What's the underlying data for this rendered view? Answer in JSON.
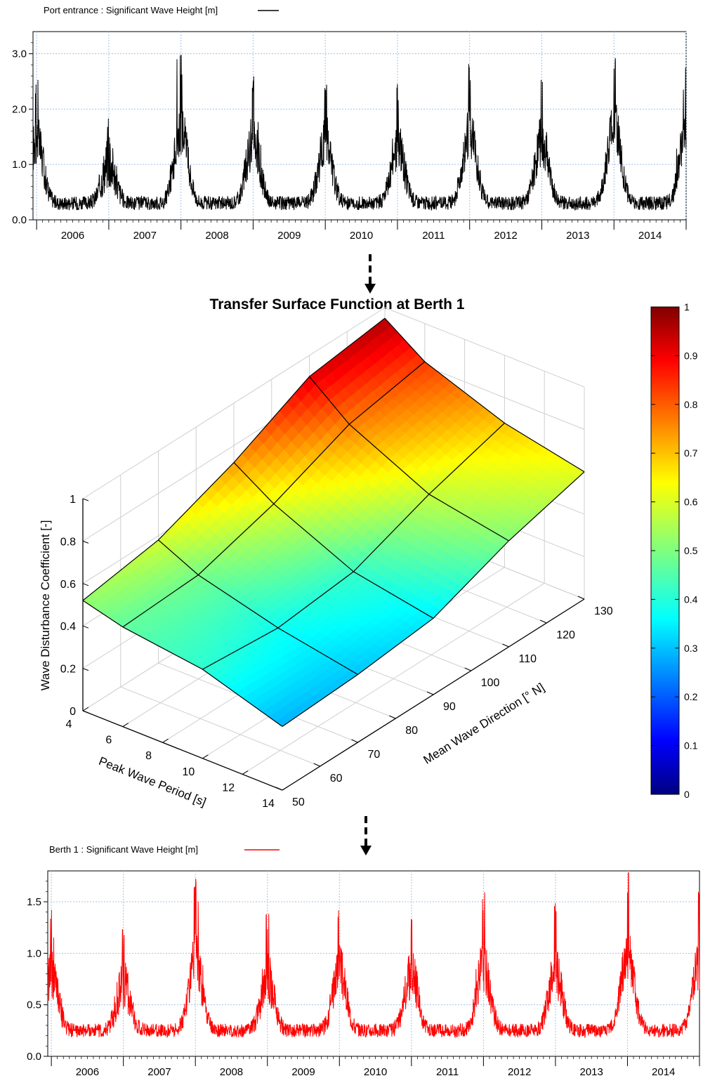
{
  "chart_data": [
    {
      "type": "line",
      "legend": "Port entrance : Significant Wave Height [m]",
      "legend_placement": "top-left",
      "series": [
        {
          "name": "Port entrance : Significant Wave Height [m]",
          "color": "#000000"
        }
      ],
      "x_categories": [
        "2006",
        "2007",
        "2008",
        "2009",
        "2010",
        "2011",
        "2012",
        "2013",
        "2014"
      ],
      "y_ticks": [
        "0.0",
        "1.0",
        "2.0",
        "3.0"
      ],
      "ylim": [
        0,
        3.4
      ],
      "grid": true,
      "seasonal_profile": {
        "baseline": 0.3,
        "yearly_peaks": [
          2.6,
          1.9,
          3.0,
          2.6,
          2.6,
          2.5,
          2.9,
          2.6,
          3.2
        ],
        "final_peak": 2.9
      }
    },
    {
      "type": "surface",
      "title": "Transfer Surface Function at Berth 1",
      "xlabel": "Peak Wave Period [s]",
      "ylabel": "Mean Wave Direction [° N]",
      "zlabel": "Wave Disturbance Coefficient [-]",
      "x_ticks": [
        "4",
        "6",
        "8",
        "10",
        "12",
        "14"
      ],
      "y_ticks": [
        "50",
        "60",
        "70",
        "80",
        "90",
        "100",
        "110",
        "120",
        "130"
      ],
      "z_ticks": [
        "0",
        "0.2",
        "0.4",
        "0.6",
        "0.8",
        "1"
      ],
      "xlim": [
        4,
        14
      ],
      "ylim": [
        50,
        130
      ],
      "zlim": [
        0,
        1
      ],
      "grid_x": [
        4,
        6,
        10,
        14
      ],
      "grid_y": [
        50,
        70,
        90,
        110,
        130
      ],
      "z_values": [
        [
          0.52,
          0.58,
          0.72,
          0.9,
          0.95
        ],
        [
          0.47,
          0.49,
          0.6,
          0.75,
          0.82
        ],
        [
          0.42,
          0.39,
          0.43,
          0.57,
          0.68
        ],
        [
          0.3,
          0.32,
          0.36,
          0.5,
          0.6
        ]
      ],
      "colorbar_ticks": [
        "0",
        "0.1",
        "0.2",
        "0.3",
        "0.4",
        "0.5",
        "0.6",
        "0.7",
        "0.8",
        "0.9",
        "1"
      ],
      "colormap": "jet"
    },
    {
      "type": "line",
      "legend": "Berth 1 : Significant Wave Height [m]",
      "legend_placement": "top-left",
      "series": [
        {
          "name": "Berth 1 : Significant Wave Height [m]",
          "color": "#ff0000"
        }
      ],
      "x_categories": [
        "2006",
        "2007",
        "2008",
        "2009",
        "2010",
        "2011",
        "2012",
        "2013",
        "2014"
      ],
      "y_ticks": [
        "0.0",
        "0.5",
        "1.0",
        "1.5"
      ],
      "ylim": [
        0,
        1.8
      ],
      "grid": true,
      "seasonal_profile": {
        "baseline": 0.25,
        "yearly_peaks": [
          1.45,
          1.3,
          1.7,
          1.4,
          1.5,
          1.45,
          1.6,
          1.5,
          1.8
        ],
        "final_peak": 1.65
      }
    }
  ],
  "arrows": [
    {
      "color": "#000000"
    },
    {
      "color": "#000000"
    }
  ]
}
